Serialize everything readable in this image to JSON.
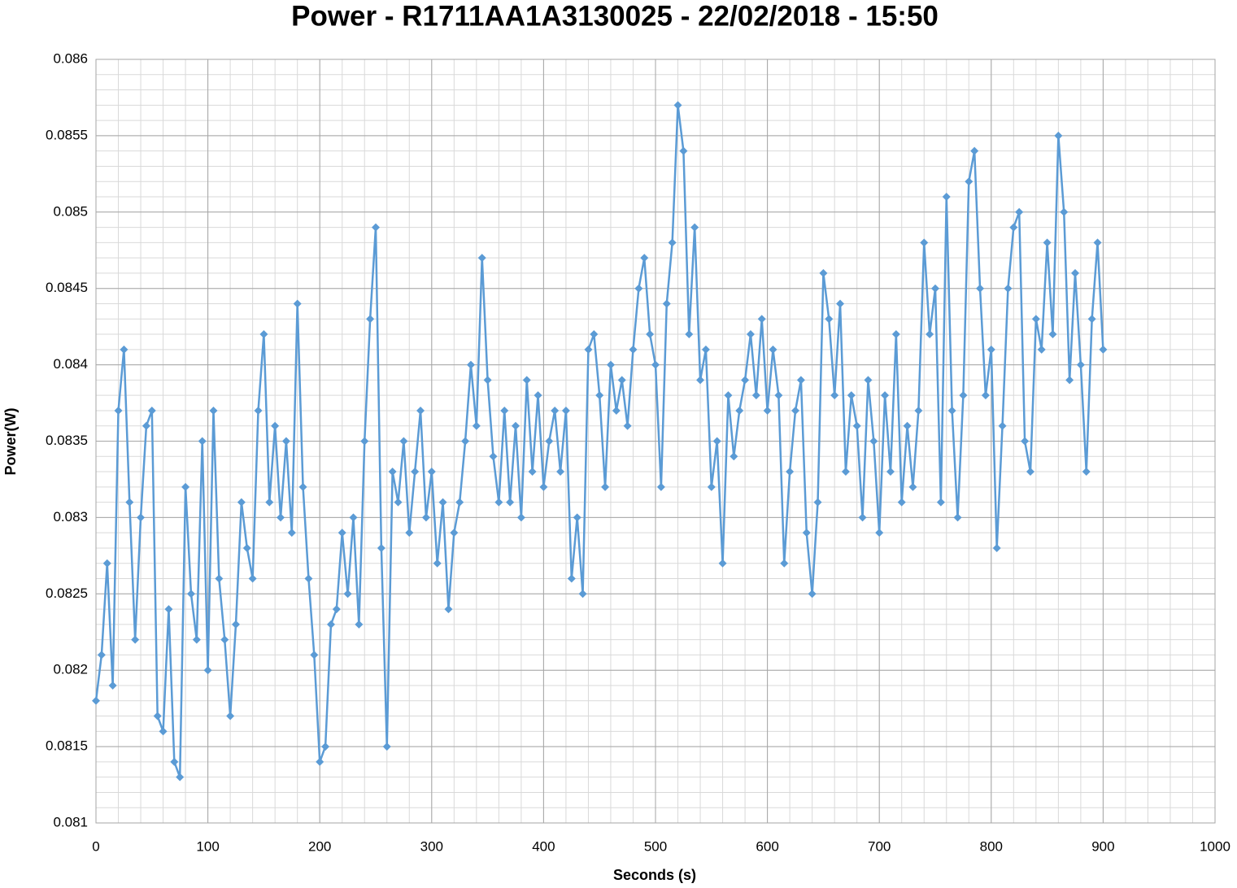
{
  "chart_data": {
    "type": "line",
    "title": "Power - R1711AA1A3130025 - 22/02/2018 - 15:50",
    "x_label": "Seconds (s)",
    "y_label": "Power(W)",
    "xlim": [
      0,
      1000
    ],
    "xticks": [
      0,
      100,
      200,
      300,
      400,
      500,
      600,
      700,
      800,
      900,
      1000
    ],
    "ylim": [
      0.081,
      0.086
    ],
    "yticks": [
      0.081,
      0.0815,
      0.082,
      0.0825,
      0.083,
      0.0835,
      0.084,
      0.0845,
      0.085,
      0.0855,
      0.086
    ],
    "grid": true,
    "minor_grid": {
      "x_step": 20,
      "y_step": 0.0001
    },
    "marker": "diamond",
    "series": [
      {
        "color": "#5b9bd5",
        "x": [
          0,
          5,
          10,
          15,
          20,
          25,
          30,
          35,
          40,
          45,
          50,
          55,
          60,
          65,
          70,
          75,
          80,
          85,
          90,
          95,
          100,
          105,
          110,
          115,
          120,
          125,
          130,
          135,
          140,
          145,
          150,
          155,
          160,
          165,
          170,
          175,
          180,
          185,
          190,
          195,
          200,
          205,
          210,
          215,
          220,
          225,
          230,
          235,
          240,
          245,
          250,
          255,
          260,
          265,
          270,
          275,
          280,
          285,
          290,
          295,
          300,
          305,
          310,
          315,
          320,
          325,
          330,
          335,
          340,
          345,
          350,
          355,
          360,
          365,
          370,
          375,
          380,
          385,
          390,
          395,
          400,
          405,
          410,
          415,
          420,
          425,
          430,
          435,
          440,
          445,
          450,
          455,
          460,
          465,
          470,
          475,
          480,
          485,
          490,
          495,
          500,
          505,
          510,
          515,
          520,
          525,
          530,
          535,
          540,
          545,
          550,
          555,
          560,
          565,
          570,
          575,
          580,
          585,
          590,
          595,
          600,
          605,
          610,
          615,
          620,
          625,
          630,
          635,
          640,
          645,
          650,
          655,
          660,
          665,
          670,
          675,
          680,
          685,
          690,
          695,
          700,
          705,
          710,
          715,
          720,
          725,
          730,
          735,
          740,
          745,
          750,
          755,
          760,
          765,
          770,
          775,
          780,
          785,
          790,
          795,
          800,
          805,
          810,
          815,
          820,
          825,
          830,
          835,
          840,
          845,
          850,
          855,
          860,
          865,
          870,
          875,
          880,
          885,
          890,
          895,
          900
        ],
        "values": [
          0.0818,
          0.0821,
          0.0827,
          0.0819,
          0.0837,
          0.0841,
          0.0831,
          0.0822,
          0.083,
          0.0836,
          0.0837,
          0.0817,
          0.0816,
          0.0824,
          0.0814,
          0.0813,
          0.0832,
          0.0825,
          0.0822,
          0.0835,
          0.082,
          0.0837,
          0.0826,
          0.0822,
          0.0817,
          0.0823,
          0.0831,
          0.0828,
          0.0826,
          0.0837,
          0.0842,
          0.0831,
          0.0836,
          0.083,
          0.0835,
          0.0829,
          0.0844,
          0.0832,
          0.0826,
          0.0821,
          0.0814,
          0.0815,
          0.0823,
          0.0824,
          0.0829,
          0.0825,
          0.083,
          0.0823,
          0.0835,
          0.0843,
          0.0849,
          0.0828,
          0.0815,
          0.0833,
          0.0831,
          0.0835,
          0.0829,
          0.0833,
          0.0837,
          0.083,
          0.0833,
          0.0827,
          0.0831,
          0.0824,
          0.0829,
          0.0831,
          0.0835,
          0.084,
          0.0836,
          0.0847,
          0.0839,
          0.0834,
          0.0831,
          0.0837,
          0.0831,
          0.0836,
          0.083,
          0.0839,
          0.0833,
          0.0838,
          0.0832,
          0.0835,
          0.0837,
          0.0833,
          0.0837,
          0.0826,
          0.083,
          0.0825,
          0.0841,
          0.0842,
          0.0838,
          0.0832,
          0.084,
          0.0837,
          0.0839,
          0.0836,
          0.0841,
          0.0845,
          0.0847,
          0.0842,
          0.084,
          0.0832,
          0.0844,
          0.0848,
          0.0857,
          0.0854,
          0.0842,
          0.0849,
          0.0839,
          0.0841,
          0.0832,
          0.0835,
          0.0827,
          0.0838,
          0.0834,
          0.0837,
          0.0839,
          0.0842,
          0.0838,
          0.0843,
          0.0837,
          0.0841,
          0.0838,
          0.0827,
          0.0833,
          0.0837,
          0.0839,
          0.0829,
          0.0825,
          0.0831,
          0.0846,
          0.0843,
          0.0838,
          0.0844,
          0.0833,
          0.0838,
          0.0836,
          0.083,
          0.0839,
          0.0835,
          0.0829,
          0.0838,
          0.0833,
          0.0842,
          0.0831,
          0.0836,
          0.0832,
          0.0837,
          0.0848,
          0.0842,
          0.0845,
          0.0831,
          0.0851,
          0.0837,
          0.083,
          0.0838,
          0.0852,
          0.0854,
          0.0845,
          0.0838,
          0.0841,
          0.0828,
          0.0836,
          0.0845,
          0.0849,
          0.085,
          0.0835,
          0.0833,
          0.0843,
          0.0841,
          0.0848,
          0.0842,
          0.0855,
          0.085,
          0.0839,
          0.0846,
          0.084,
          0.0833,
          0.0843,
          0.0848,
          0.0841
        ]
      }
    ]
  }
}
